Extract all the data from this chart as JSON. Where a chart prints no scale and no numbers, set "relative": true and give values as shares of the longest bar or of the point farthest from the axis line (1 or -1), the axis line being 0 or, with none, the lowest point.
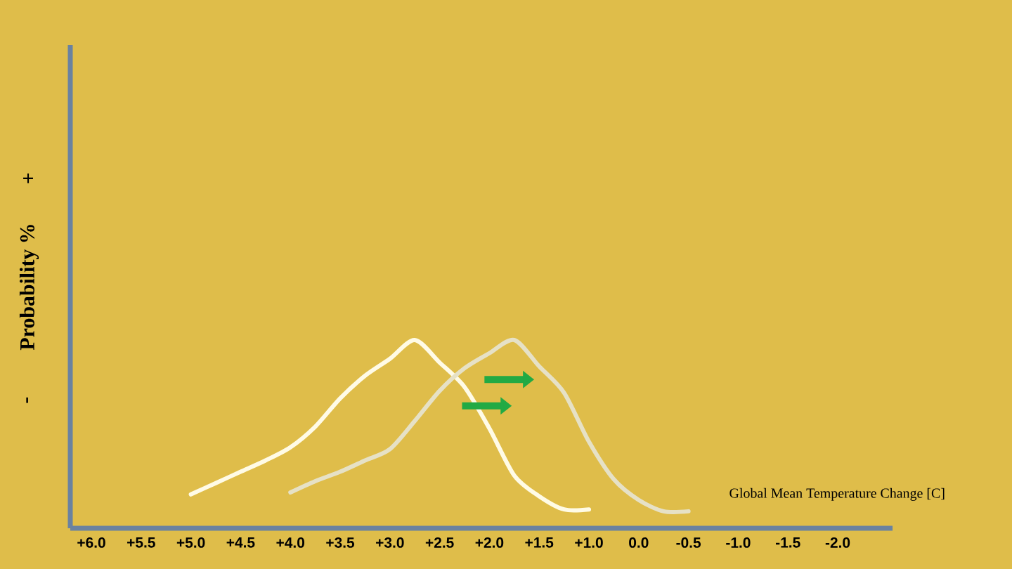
{
  "chart_data": {
    "type": "line",
    "xlabel": "Global Mean Temperature Change [C]",
    "ylabel": "Probability %",
    "annotations": [
      "-",
      "+"
    ],
    "categories": [
      "+6.0",
      null,
      "+5.5",
      null,
      "+5.0",
      null,
      "+4.5",
      null,
      "+4.0",
      null,
      "+3.5",
      null,
      "+3.0",
      null,
      "+2.5",
      null,
      "+2.0",
      null,
      "+1.5",
      null,
      "+1.0",
      null,
      "0.0",
      null,
      "-0.5",
      null,
      "-1.0",
      null,
      "-1.5",
      null,
      "-2.0"
    ],
    "relative": true,
    "marker": "none",
    "line_style": "solid",
    "series": [
      {
        "color": "#fffbe6",
        "values": [
          null,
          null,
          null,
          null,
          0.18,
          0.24,
          0.3,
          0.36,
          0.43,
          0.54,
          0.69,
          0.81,
          0.9,
          1.0,
          0.88,
          0.75,
          0.53,
          0.28,
          0.17,
          0.1,
          0.1,
          null,
          null,
          null,
          null,
          null,
          null,
          null,
          null,
          null,
          null
        ]
      },
      {
        "color": "#e6e1c6",
        "values": [
          null,
          null,
          null,
          null,
          null,
          null,
          null,
          null,
          0.19,
          0.25,
          0.3,
          0.36,
          0.42,
          0.57,
          0.73,
          0.85,
          0.93,
          1.0,
          0.86,
          0.72,
          0.46,
          0.26,
          0.15,
          0.09,
          0.09,
          null,
          null,
          null,
          null,
          null,
          null
        ]
      }
    ]
  }
}
